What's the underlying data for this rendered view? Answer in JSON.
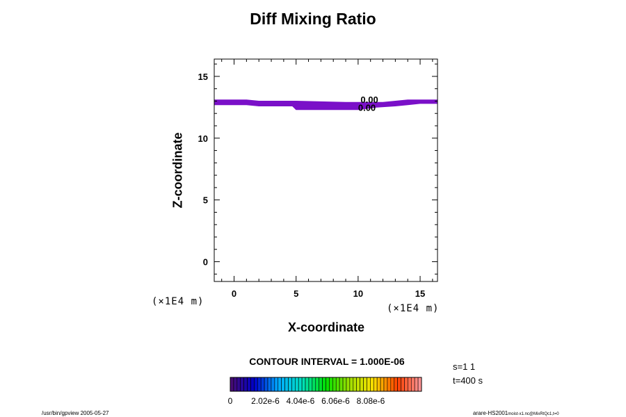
{
  "chart_data": {
    "type": "contour",
    "title": "Diff Mixing Ratio",
    "xlabel": "X-coordinate",
    "ylabel": "Z-coordinate",
    "x_unit_left": "(×1E4 m)",
    "x_unit_right": "(×1E4 m)",
    "xlim": [
      -1.6,
      16.4
    ],
    "ylim": [
      -1.6,
      16.4
    ],
    "xticks": [
      0,
      5,
      10,
      15
    ],
    "yticks": [
      0,
      5,
      10,
      15
    ],
    "contour_label_top": "0.00",
    "contour_label_bottom": "0.00",
    "shaded_band": {
      "color": "#7a10c8",
      "top": [
        [
          -1.6,
          13.1
        ],
        [
          1.0,
          13.1
        ],
        [
          2.0,
          13.0
        ],
        [
          5.0,
          13.0
        ],
        [
          9.0,
          12.9
        ],
        [
          12.0,
          12.9
        ],
        [
          14.0,
          13.1
        ],
        [
          16.4,
          13.1
        ]
      ],
      "bottom": [
        [
          16.4,
          12.8
        ],
        [
          15.0,
          12.8
        ],
        [
          14.0,
          12.7
        ],
        [
          13.0,
          12.6
        ],
        [
          11.5,
          12.5
        ],
        [
          10.0,
          12.3
        ],
        [
          5.0,
          12.3
        ],
        [
          4.7,
          12.6
        ],
        [
          2.0,
          12.6
        ],
        [
          1.0,
          12.7
        ],
        [
          -1.6,
          12.7
        ]
      ]
    },
    "contour_interval": "CONTOUR INTERVAL = 1.000E-06",
    "colorbar": {
      "min": 0,
      "max": 1.1e-05,
      "tick_labels": [
        "0",
        "2.02e-6",
        "4.04e-6",
        "6.06e-6",
        "8.08e-6"
      ],
      "tick_values": [
        0,
        2.02e-06,
        4.04e-06,
        6.06e-06,
        8.08e-06
      ],
      "stops": [
        "#4b0d6e",
        "#0000c8",
        "#00a8ff",
        "#00e0c0",
        "#00e000",
        "#a0e000",
        "#ffe000",
        "#ff4000",
        "#ff9aa0"
      ]
    }
  },
  "annotations": {
    "s_value": "s=1 1",
    "t_value": "t=400 s",
    "footer_left": "/usr/bin/gpview 2005-05-27",
    "footer_right_main": "arare-HS2001",
    "footer_right_sub": "moist-x1.nc@MixRtQc1,t=0"
  }
}
